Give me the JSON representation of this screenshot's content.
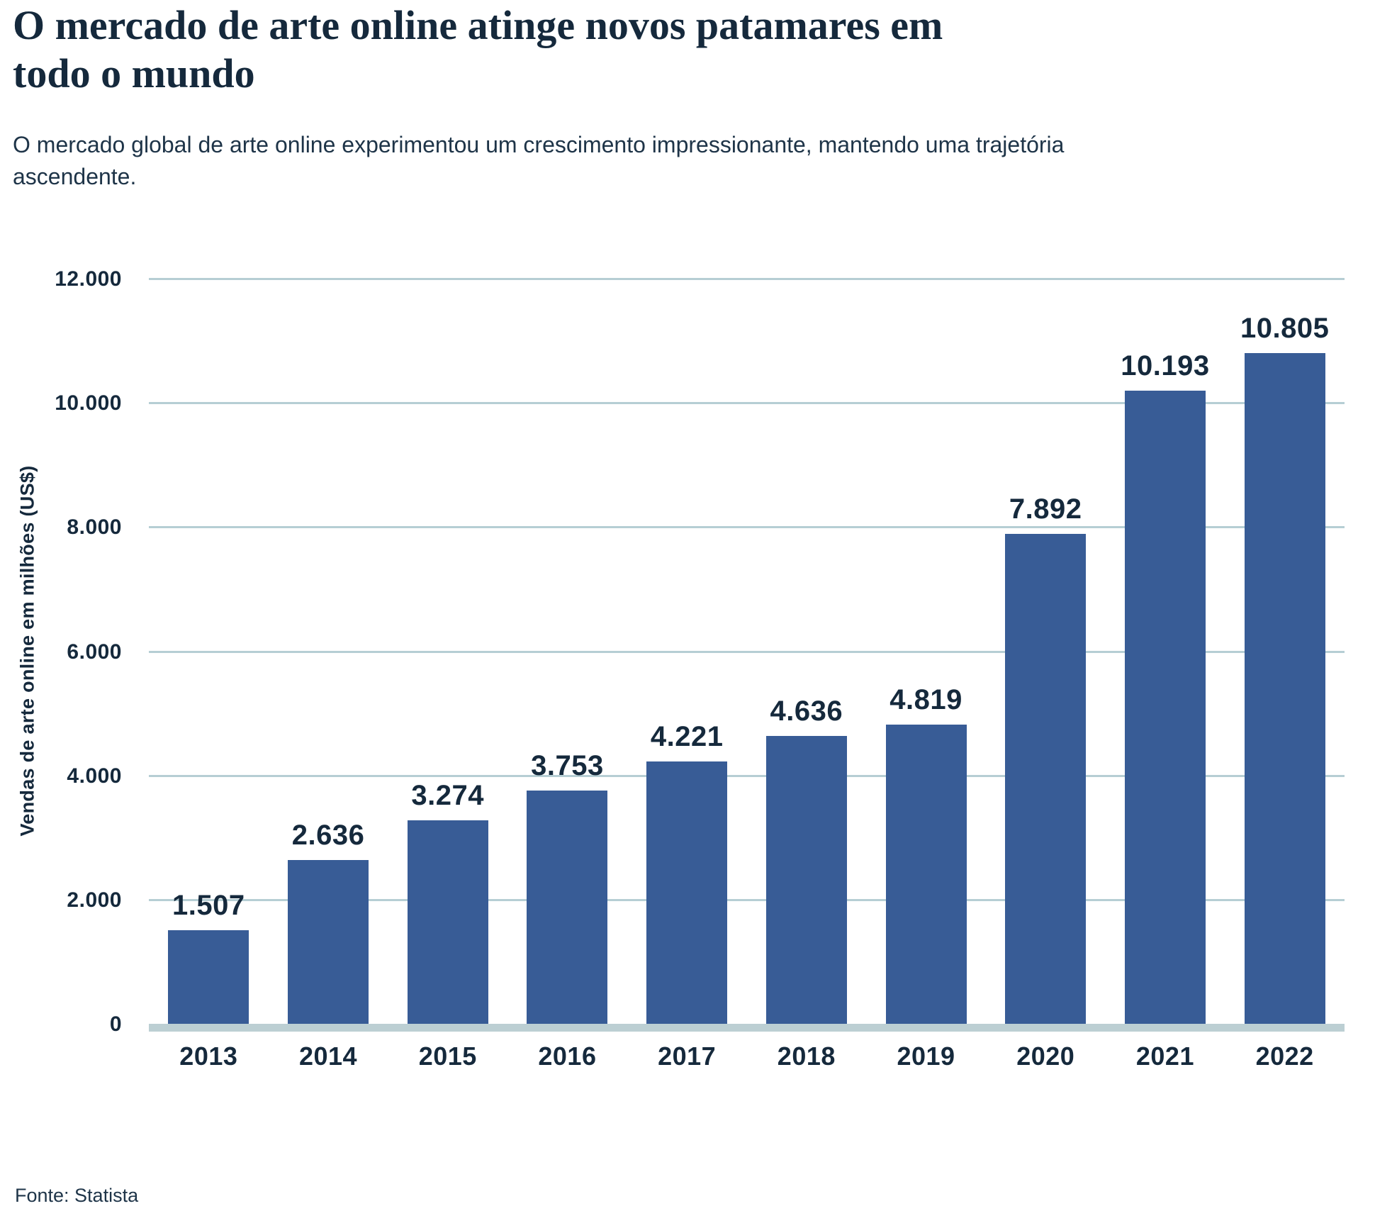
{
  "header": {
    "title_line1": "O mercado de arte online atinge novos patamares em",
    "title_line2": "todo o mundo",
    "subtitle_line1": "O mercado global de arte online experimentou um crescimento impressionante, mantendo uma trajetória",
    "subtitle_line2": "ascendente."
  },
  "footer": {
    "source": "Fonte: Statista"
  },
  "colors": {
    "text": "#15293C",
    "text_soft": "#1E3448",
    "bar": "#385C96",
    "grid": "#B6CED4",
    "baseline": "#BCCFD3",
    "background": "#FFFFFF"
  },
  "chart_data": {
    "type": "bar",
    "title": "O mercado de arte online atinge novos patamares em todo o mundo",
    "subtitle": "O mercado global de arte online experimentou um crescimento impressionante, mantendo uma trajetória ascendente.",
    "categories": [
      "2013",
      "2014",
      "2015",
      "2016",
      "2017",
      "2018",
      "2019",
      "2020",
      "2021",
      "2022"
    ],
    "values": [
      1507,
      2636,
      3274,
      3753,
      4221,
      4636,
      4819,
      7892,
      10193,
      10805
    ],
    "value_labels": [
      "1.507",
      "2.636",
      "3.274",
      "3.753",
      "4.221",
      "4.636",
      "4.819",
      "7.892",
      "10.193",
      "10.805"
    ],
    "xlabel": "",
    "ylabel": "Vendas de arte online em milhões (US$)",
    "ylim": [
      0,
      12000
    ],
    "y_ticks": [
      {
        "value": 0,
        "label": "0"
      },
      {
        "value": 2000,
        "label": "2.000"
      },
      {
        "value": 4000,
        "label": "4.000"
      },
      {
        "value": 6000,
        "label": "6.000"
      },
      {
        "value": 8000,
        "label": "8.000"
      },
      {
        "value": 10000,
        "label": "10.000"
      },
      {
        "value": 12000,
        "label": "12.000"
      }
    ],
    "grid": true,
    "legend_position": "none",
    "source": "Fonte: Statista"
  }
}
